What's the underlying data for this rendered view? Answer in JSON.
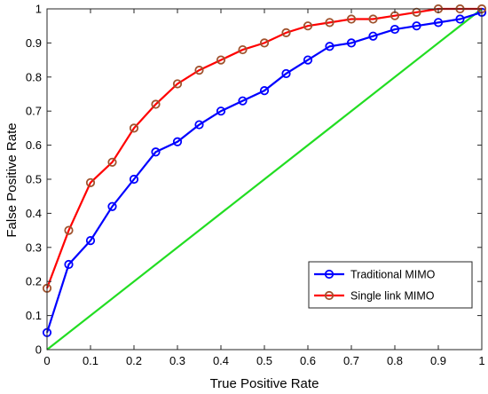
{
  "chart_data": {
    "type": "line",
    "xlabel": "True Positive Rate",
    "ylabel": "False Positive Rate",
    "xlim": [
      0,
      1
    ],
    "ylim": [
      0,
      1
    ],
    "xticks": [
      "0",
      "0.1",
      "0.2",
      "0.3",
      "0.4",
      "0.5",
      "0.6",
      "0.7",
      "0.8",
      "0.9",
      "1"
    ],
    "yticks": [
      "0",
      "0.1",
      "0.2",
      "0.3",
      "0.4",
      "0.5",
      "0.6",
      "0.7",
      "0.8",
      "0.9",
      "1"
    ],
    "grid": false,
    "legend_position": "bottom-right",
    "series": [
      {
        "name": "Traditional MIMO",
        "color": "#0000ff",
        "marker": "circle",
        "x": [
          0,
          0.05,
          0.1,
          0.15,
          0.2,
          0.25,
          0.3,
          0.35,
          0.4,
          0.45,
          0.5,
          0.55,
          0.6,
          0.65,
          0.7,
          0.75,
          0.8,
          0.85,
          0.9,
          0.95,
          1.0
        ],
        "y": [
          0.05,
          0.25,
          0.32,
          0.42,
          0.5,
          0.58,
          0.61,
          0.66,
          0.7,
          0.73,
          0.76,
          0.81,
          0.85,
          0.89,
          0.9,
          0.92,
          0.94,
          0.95,
          0.96,
          0.97,
          0.99
        ]
      },
      {
        "name": "Single link MIMO",
        "color": "#ff0000",
        "marker_edge": "#a0522d",
        "marker": "circle",
        "x": [
          0,
          0.05,
          0.1,
          0.15,
          0.2,
          0.25,
          0.3,
          0.35,
          0.4,
          0.45,
          0.5,
          0.55,
          0.6,
          0.65,
          0.7,
          0.75,
          0.8,
          0.85,
          0.9,
          0.95,
          1.0
        ],
        "y": [
          0.18,
          0.35,
          0.49,
          0.55,
          0.65,
          0.72,
          0.78,
          0.82,
          0.85,
          0.88,
          0.9,
          0.93,
          0.95,
          0.96,
          0.97,
          0.97,
          0.98,
          0.99,
          1.0,
          1.0,
          1.0
        ]
      },
      {
        "name": "",
        "color": "#22dd22",
        "marker": "none",
        "x": [
          0,
          1
        ],
        "y": [
          0,
          1
        ]
      }
    ]
  }
}
